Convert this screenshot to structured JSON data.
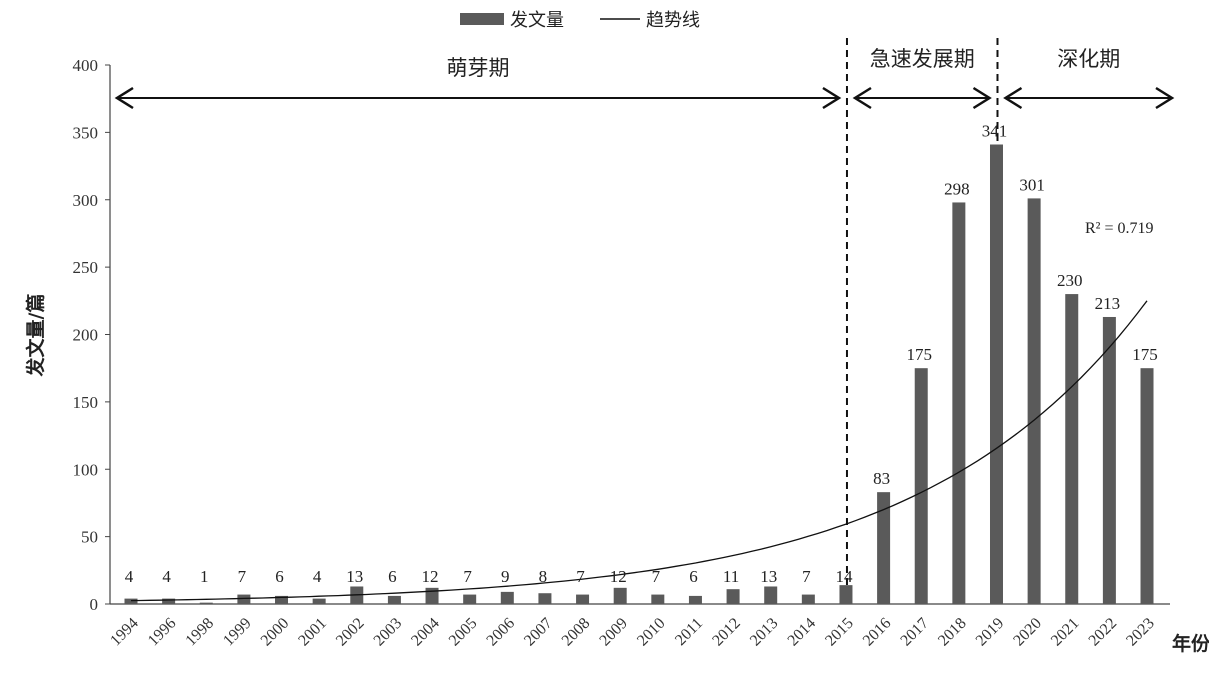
{
  "chart_data": {
    "type": "bar",
    "categories": [
      "1994",
      "1996",
      "1998",
      "1999",
      "2000",
      "2001",
      "2002",
      "2003",
      "2004",
      "2005",
      "2006",
      "2007",
      "2008",
      "2009",
      "2010",
      "2011",
      "2012",
      "2013",
      "2014",
      "2015",
      "2016",
      "2017",
      "2018",
      "2019",
      "2020",
      "2021",
      "2022",
      "2023"
    ],
    "series": [
      {
        "name": "发文量",
        "values": [
          4,
          4,
          1,
          7,
          6,
          4,
          13,
          6,
          12,
          7,
          9,
          8,
          7,
          12,
          7,
          6,
          11,
          13,
          7,
          14,
          83,
          175,
          298,
          341,
          301,
          230,
          213,
          175
        ]
      }
    ],
    "trendline": {
      "name": "趋势线",
      "r_squared_label": "R² = 0.719"
    },
    "ylabel": "发文量/篇",
    "xlabel": "年份",
    "ylim": [
      0,
      400
    ],
    "yticks": [
      0,
      50,
      100,
      150,
      200,
      250,
      300,
      350,
      400
    ],
    "legend_position": "top",
    "bar_color": "#5a5a5a",
    "phases": [
      {
        "label": "萌芽期",
        "from": "1994",
        "to": "2015"
      },
      {
        "label": "急速发展期",
        "from": "2015",
        "to": "2019"
      },
      {
        "label": "深化期",
        "from": "2019",
        "to": "2023"
      }
    ]
  }
}
